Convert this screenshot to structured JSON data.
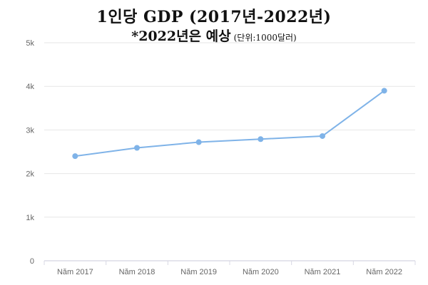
{
  "chart_data": {
    "type": "line",
    "title": "1인당 GDP (2017년-2022년)",
    "subtitle": "*2022년은 예상",
    "subtitle_note": "(단위:1000달러)",
    "categories": [
      "Năm 2017",
      "Năm 2018",
      "Năm 2019",
      "Năm 2020",
      "Năm 2021",
      "Năm 2022"
    ],
    "series": [
      {
        "values": [
          2400,
          2590,
          2720,
          2790,
          2860,
          3900
        ],
        "color": "#7fb3e8"
      }
    ],
    "yticks": [
      "0",
      "1k",
      "2k",
      "3k",
      "4k",
      "5k"
    ],
    "ylim": [
      0,
      5000
    ],
    "grid": true,
    "legend": "none"
  }
}
